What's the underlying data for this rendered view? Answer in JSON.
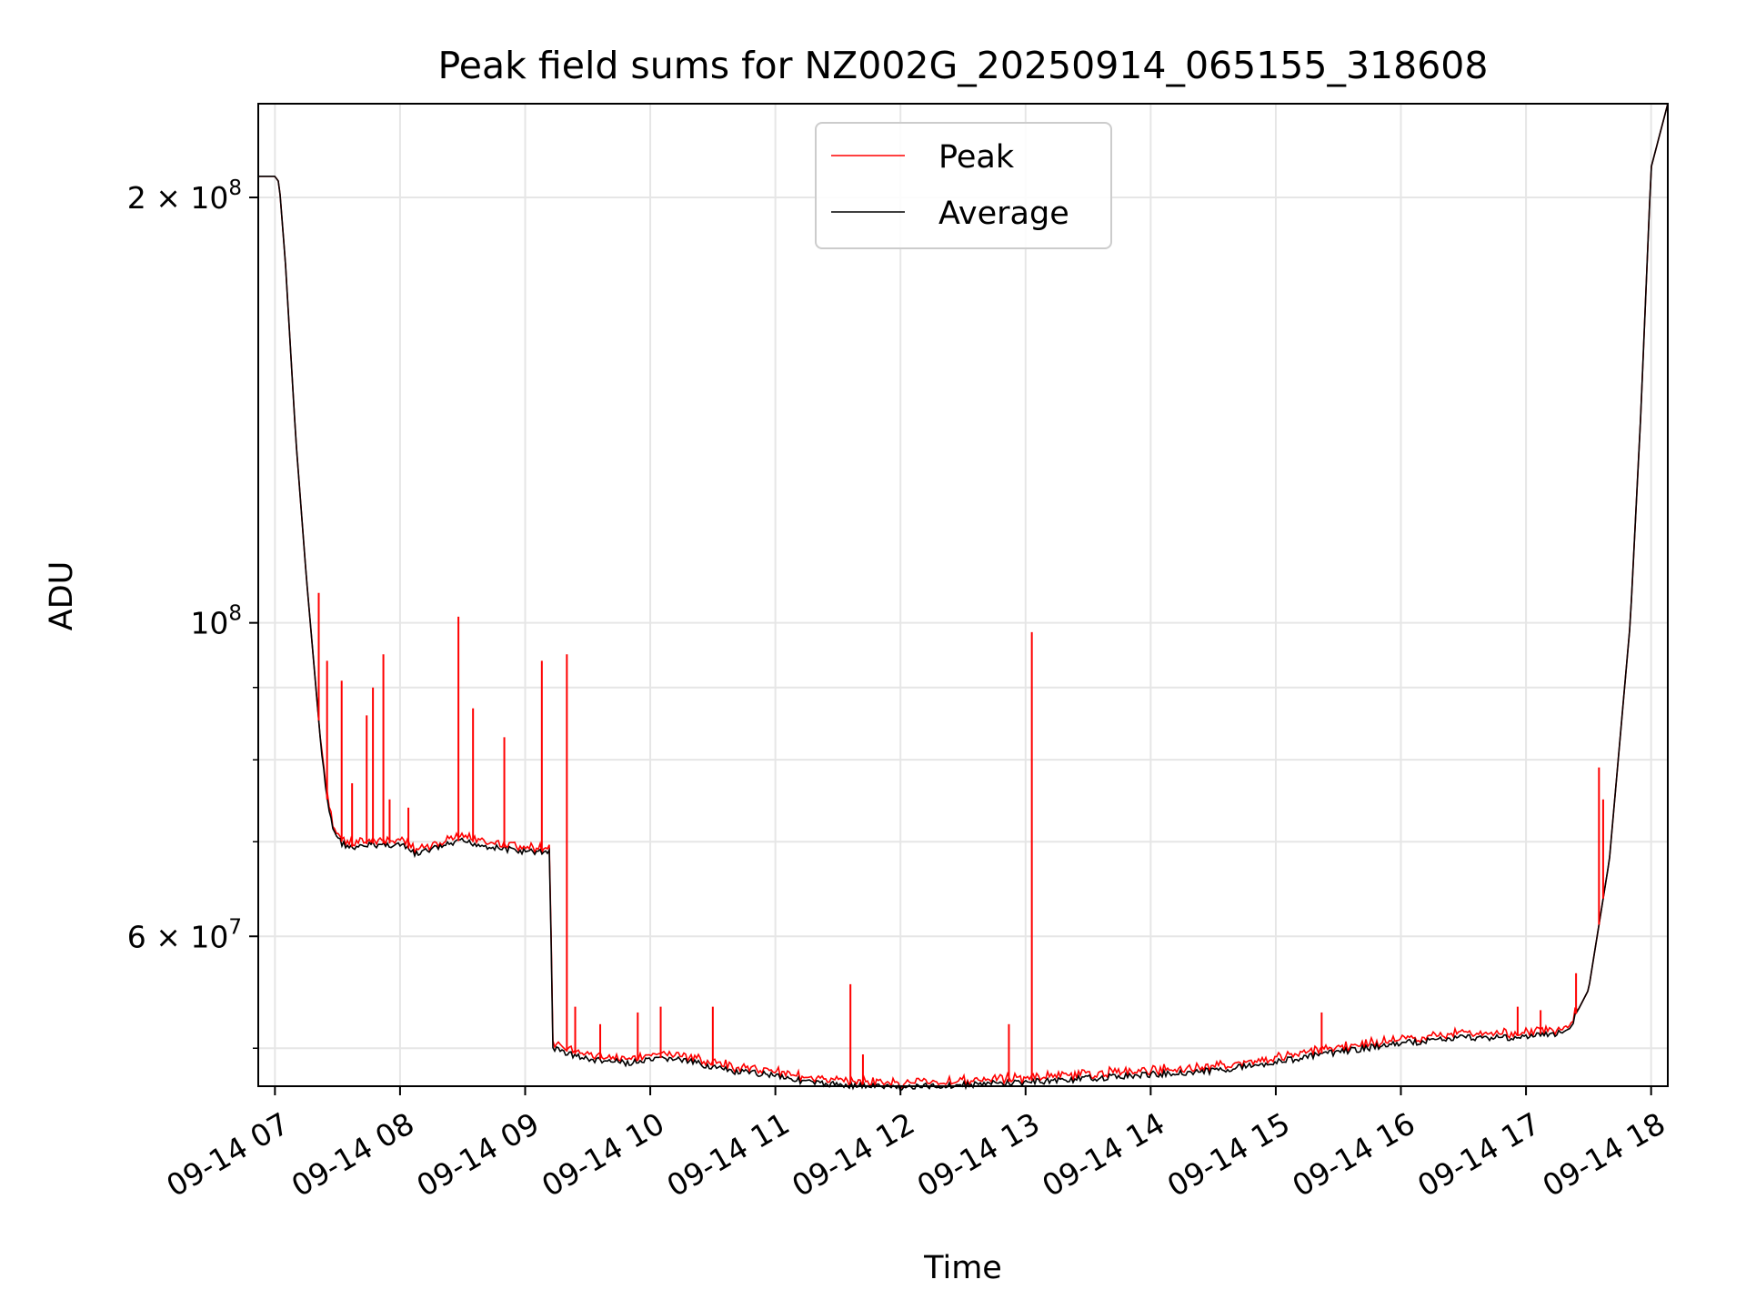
{
  "chart_data": {
    "type": "line",
    "title": "Peak field sums for NZ002G_20250914_065155_318608",
    "xlabel": "Time",
    "ylabel": "ADU",
    "x_axis": "date",
    "y_scale": "log",
    "ylim": [
      47000000,
      233000000
    ],
    "xlim": [
      "2025-09-14 06:52",
      "2025-09-14 18:08"
    ],
    "grid": true,
    "legend_position": "upper center",
    "xticks": [
      "09-14 07",
      "09-14 08",
      "09-14 09",
      "09-14 10",
      "09-14 11",
      "09-14 12",
      "09-14 13",
      "09-14 14",
      "09-14 15",
      "09-14 16",
      "09-14 17",
      "09-14 18"
    ],
    "yticks_major": [
      {
        "value": 60000000,
        "label": "6 × 10",
        "exp": "7"
      },
      {
        "value": 100000000,
        "label": "10",
        "exp": "8"
      },
      {
        "value": 200000000,
        "label": "2 × 10",
        "exp": "8"
      }
    ],
    "yticks_minor": [
      50000000,
      70000000,
      80000000,
      90000000
    ],
    "series": [
      {
        "name": "Average",
        "color": "#000000",
        "x": [
          "2025-09-14 06:52",
          "2025-09-14 07:00",
          "2025-09-14 07:02",
          "2025-09-14 07:05",
          "2025-09-14 07:10",
          "2025-09-14 07:15",
          "2025-09-14 07:18",
          "2025-09-14 07:22",
          "2025-09-14 07:25",
          "2025-09-14 07:28",
          "2025-09-14 07:32",
          "2025-09-14 07:38",
          "2025-09-14 07:45",
          "2025-09-14 08:00",
          "2025-09-14 08:08",
          "2025-09-14 08:15",
          "2025-09-14 08:30",
          "2025-09-14 08:45",
          "2025-09-14 09:00",
          "2025-09-14 09:12",
          "2025-09-14 09:13",
          "2025-09-14 09:30",
          "2025-09-14 09:50",
          "2025-09-14 10:10",
          "2025-09-14 10:25",
          "2025-09-14 10:40",
          "2025-09-14 11:00",
          "2025-09-14 11:10",
          "2025-09-14 11:20",
          "2025-09-14 11:40",
          "2025-09-14 12:00",
          "2025-09-14 12:30",
          "2025-09-14 13:00",
          "2025-09-14 13:30",
          "2025-09-14 14:00",
          "2025-09-14 14:30",
          "2025-09-14 15:00",
          "2025-09-14 15:30",
          "2025-09-14 16:00",
          "2025-09-14 16:30",
          "2025-09-14 17:00",
          "2025-09-14 17:20",
          "2025-09-14 17:30",
          "2025-09-14 17:40",
          "2025-09-14 17:50",
          "2025-09-14 17:55",
          "2025-09-14 18:00",
          "2025-09-14 18:08"
        ],
        "y": [
          207000000,
          207000000,
          205000000,
          180000000,
          135000000,
          108000000,
          96000000,
          82000000,
          75000000,
          71500000,
          70000000,
          69300000,
          69800000,
          69800000,
          68700000,
          69300000,
          70200000,
          69500000,
          69000000,
          69000000,
          50100000,
          49200000,
          48900000,
          49300000,
          48800000,
          48200000,
          48000000,
          47600000,
          47300000,
          47150000,
          47000000,
          47200000,
          47400000,
          47700000,
          48000000,
          48300000,
          49000000,
          49800000,
          50500000,
          51000000,
          51000000,
          51500000,
          55000000,
          68000000,
          100000000,
          140000000,
          210000000,
          233000000
        ]
      },
      {
        "name": "Peak",
        "color": "#ff0000",
        "spikes": [
          {
            "x": "2025-09-14 07:21",
            "y": 105000000
          },
          {
            "x": "2025-09-14 07:25",
            "y": 94000000
          },
          {
            "x": "2025-09-14 07:32",
            "y": 91000000
          },
          {
            "x": "2025-09-14 07:37",
            "y": 77000000
          },
          {
            "x": "2025-09-14 07:44",
            "y": 86000000
          },
          {
            "x": "2025-09-14 07:47",
            "y": 90000000
          },
          {
            "x": "2025-09-14 07:52",
            "y": 95000000
          },
          {
            "x": "2025-09-14 07:55",
            "y": 75000000
          },
          {
            "x": "2025-09-14 08:04",
            "y": 74000000
          },
          {
            "x": "2025-09-14 08:28",
            "y": 101000000
          },
          {
            "x": "2025-09-14 08:35",
            "y": 87000000
          },
          {
            "x": "2025-09-14 08:50",
            "y": 83000000
          },
          {
            "x": "2025-09-14 09:08",
            "y": 94000000
          },
          {
            "x": "2025-09-14 09:20",
            "y": 95000000
          },
          {
            "x": "2025-09-14 09:24",
            "y": 53500000
          },
          {
            "x": "2025-09-14 09:36",
            "y": 52000000
          },
          {
            "x": "2025-09-14 09:54",
            "y": 53000000
          },
          {
            "x": "2025-09-14 10:05",
            "y": 53500000
          },
          {
            "x": "2025-09-14 10:30",
            "y": 53500000
          },
          {
            "x": "2025-09-14 11:36",
            "y": 55500000
          },
          {
            "x": "2025-09-14 11:42",
            "y": 49500000
          },
          {
            "x": "2025-09-14 12:52",
            "y": 52000000
          },
          {
            "x": "2025-09-14 13:03",
            "y": 98500000
          },
          {
            "x": "2025-09-14 15:22",
            "y": 53000000
          },
          {
            "x": "2025-09-14 16:56",
            "y": 53500000
          },
          {
            "x": "2025-09-14 17:07",
            "y": 53200000
          },
          {
            "x": "2025-09-14 17:24",
            "y": 56500000
          },
          {
            "x": "2025-09-14 17:35",
            "y": 79000000
          },
          {
            "x": "2025-09-14 17:37",
            "y": 75000000
          }
        ]
      }
    ]
  }
}
